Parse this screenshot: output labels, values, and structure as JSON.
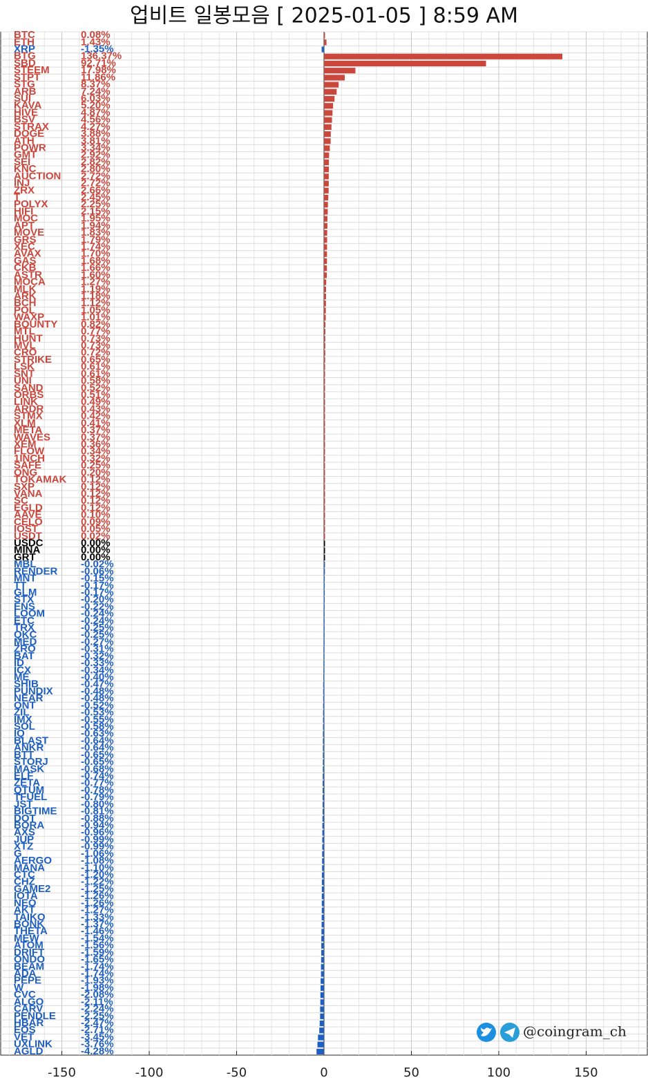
{
  "chart_data": {
    "type": "bar",
    "orientation": "horizontal",
    "title": "업비트 일봉모음 [ 2025-01-05 ]  8:59 AM",
    "watermark": "@coingram_ch",
    "colors": {
      "positive": "#c9473d",
      "negative": "#1f5fbf",
      "zero": "#000000"
    },
    "xlim": [
      -185,
      185
    ],
    "xticks": [
      -150,
      -100,
      -50,
      0,
      50,
      100,
      150
    ],
    "grid": true,
    "categories": [
      "BTC",
      "ETH",
      "XRP",
      "BTG",
      "SBD",
      "STEEM",
      "STPT",
      "STG",
      "ARB",
      "SUI",
      "KAVA",
      "HIVE",
      "BSV",
      "STRAX",
      "DOGE",
      "ATH",
      "POWR",
      "GMT",
      "SEI",
      "KNC",
      "AUCTION",
      "INJ",
      "ZRX",
      "T",
      "POLYX",
      "HIFI",
      "MOC",
      "APT",
      "MOVE",
      "GRS",
      "XEC",
      "AVAX",
      "GAS",
      "CKB",
      "ASTR",
      "MOCA",
      "MLK",
      "ARK",
      "BCH",
      "POL",
      "WAXP",
      "BOUNTY",
      "MTL",
      "HUNT",
      "MVL",
      "CRO",
      "STRIKE",
      "LSK",
      "SNT",
      "UNI",
      "SAND",
      "ORBS",
      "LINK",
      "ARDR",
      "STMX",
      "XLM",
      "META",
      "WAVES",
      "XEM",
      "FLOW",
      "1INCH",
      "SAFE",
      "ONG",
      "TOKAMAK",
      "SXP",
      "VANA",
      "SC",
      "EGLD",
      "AAVE",
      "CELO",
      "IOST",
      "USDT",
      "USDC",
      "MINA",
      "GRT",
      "MBL",
      "RENDER",
      "MNT",
      "TT",
      "GLM",
      "STX",
      "ENS",
      "LOOM",
      "ETC",
      "TRX",
      "QKC",
      "MED",
      "ZRO",
      "BAT",
      "ID",
      "ICX",
      "ME",
      "SHIB",
      "PUNDIX",
      "NEAR",
      "ONT",
      "ZIL",
      "IMX",
      "SOL",
      "IQ",
      "BLAST",
      "ANKR",
      "BTT",
      "STORJ",
      "MASK",
      "ELF",
      "ZETA",
      "QTUM",
      "TFUEL",
      "JST",
      "BIGTIME",
      "DOT",
      "BORA",
      "AXS",
      "JUP",
      "XTZ",
      "G",
      "AERGO",
      "MANA",
      "CTC",
      "CHZ",
      "GAME2",
      "IOTA",
      "NEO",
      "AKT",
      "TAIKO",
      "BONK",
      "THETA",
      "MEW",
      "ATOM",
      "DRIFT",
      "ONDO",
      "BEAM",
      "ADA",
      "PEPE",
      "W",
      "CVC",
      "ALGO",
      "CARV",
      "PENDLE",
      "HBAR",
      "EOS",
      "VET",
      "UXLINK",
      "AGLD"
    ],
    "values": [
      0.08,
      1.43,
      -1.35,
      136.37,
      92.71,
      17.98,
      11.86,
      8.37,
      7.24,
      6.03,
      5.2,
      4.87,
      4.56,
      4.27,
      3.88,
      3.81,
      3.34,
      2.92,
      2.82,
      2.8,
      2.72,
      2.72,
      2.66,
      2.45,
      2.25,
      2.15,
      1.95,
      1.94,
      1.83,
      1.79,
      1.74,
      1.7,
      1.68,
      1.66,
      1.6,
      1.27,
      1.19,
      1.18,
      1.12,
      1.05,
      1.01,
      0.82,
      0.77,
      0.73,
      0.73,
      0.72,
      0.65,
      0.61,
      0.61,
      0.58,
      0.52,
      0.51,
      0.49,
      0.43,
      0.42,
      0.41,
      0.37,
      0.37,
      0.36,
      0.34,
      0.32,
      0.25,
      0.2,
      0.12,
      0.12,
      0.12,
      0.12,
      0.12,
      0.1,
      0.09,
      0.05,
      0.02,
      0.0,
      0.0,
      0.0,
      -0.02,
      -0.06,
      -0.15,
      -0.17,
      -0.17,
      -0.2,
      -0.22,
      -0.24,
      -0.24,
      -0.25,
      -0.25,
      -0.27,
      -0.31,
      -0.32,
      -0.33,
      -0.34,
      -0.4,
      -0.47,
      -0.48,
      -0.48,
      -0.52,
      -0.53,
      -0.55,
      -0.58,
      -0.63,
      -0.64,
      -0.64,
      -0.65,
      -0.65,
      -0.68,
      -0.74,
      -0.77,
      -0.78,
      -0.79,
      -0.8,
      -0.81,
      -0.88,
      -0.94,
      -0.96,
      -0.99,
      -0.99,
      -1.06,
      -1.08,
      -1.1,
      -1.2,
      -1.22,
      -1.25,
      -1.26,
      -1.26,
      -1.27,
      -1.33,
      -1.37,
      -1.46,
      -1.54,
      -1.56,
      -1.59,
      -1.65,
      -1.74,
      -1.74,
      -1.93,
      -1.98,
      -2.08,
      -2.11,
      -2.24,
      -2.25,
      -2.47,
      -2.71,
      -3.45,
      -3.76,
      -4.28
    ],
    "value_labels": [
      "0.08%",
      "1.43%",
      "-1.35%",
      "136.37%",
      "92.71%",
      "17.98%",
      "11.86%",
      "8.37%",
      "7.24%",
      "6.03%",
      "5.20%",
      "4.87%",
      "4.56%",
      "4.27%",
      "3.88%",
      "3.81%",
      "3.34%",
      "2.92%",
      "2.82%",
      "2.80%",
      "2.72%",
      "2.72%",
      "2.66%",
      "2.45%",
      "2.25%",
      "2.15%",
      "1.95%",
      "1.94%",
      "1.83%",
      "1.79%",
      "1.74%",
      "1.70%",
      "1.68%",
      "1.66%",
      "1.60%",
      "1.27%",
      "1.19%",
      "1.18%",
      "1.12%",
      "1.05%",
      "1.01%",
      "0.82%",
      "0.77%",
      "0.73%",
      "0.73%",
      "0.72%",
      "0.65%",
      "0.61%",
      "0.61%",
      "0.58%",
      "0.52%",
      "0.51%",
      "0.49%",
      "0.43%",
      "0.42%",
      "0.41%",
      "0.37%",
      "0.37%",
      "0.36%",
      "0.34%",
      "0.32%",
      "0.25%",
      "0.20%",
      "0.12%",
      "0.12%",
      "0.12%",
      "0.12%",
      "0.12%",
      "0.10%",
      "0.09%",
      "0.05%",
      "0.02%",
      "0.00%",
      "0.00%",
      "0.00%",
      "-0.02%",
      "-0.06%",
      "-0.15%",
      "-0.17%",
      "-0.17%",
      "-0.20%",
      "-0.22%",
      "-0.24%",
      "-0.24%",
      "-0.25%",
      "-0.25%",
      "-0.27%",
      "-0.31%",
      "-0.32%",
      "-0.33%",
      "-0.34%",
      "-0.40%",
      "-0.47%",
      "-0.48%",
      "-0.48%",
      "-0.52%",
      "-0.53%",
      "-0.55%",
      "-0.58%",
      "-0.63%",
      "-0.64%",
      "-0.64%",
      "-0.65%",
      "-0.65%",
      "-0.68%",
      "-0.74%",
      "-0.77%",
      "-0.78%",
      "-0.79%",
      "-0.80%",
      "-0.81%",
      "-0.88%",
      "-0.94%",
      "-0.96%",
      "-0.99%",
      "-0.99%",
      "-1.06%",
      "-1.08%",
      "-1.10%",
      "-1.20%",
      "-1.22%",
      "-1.25%",
      "-1.26%",
      "-1.26%",
      "-1.27%",
      "-1.33%",
      "-1.37%",
      "-1.46%",
      "-1.54%",
      "-1.56%",
      "-1.59%",
      "-1.65%",
      "-1.74%",
      "-1.74%",
      "-1.93%",
      "-1.98%",
      "-2.08%",
      "-2.11%",
      "-2.24%",
      "-2.25%",
      "-2.47%",
      "-2.71%",
      "-3.45%",
      "-3.76%",
      "-4.28%"
    ]
  }
}
